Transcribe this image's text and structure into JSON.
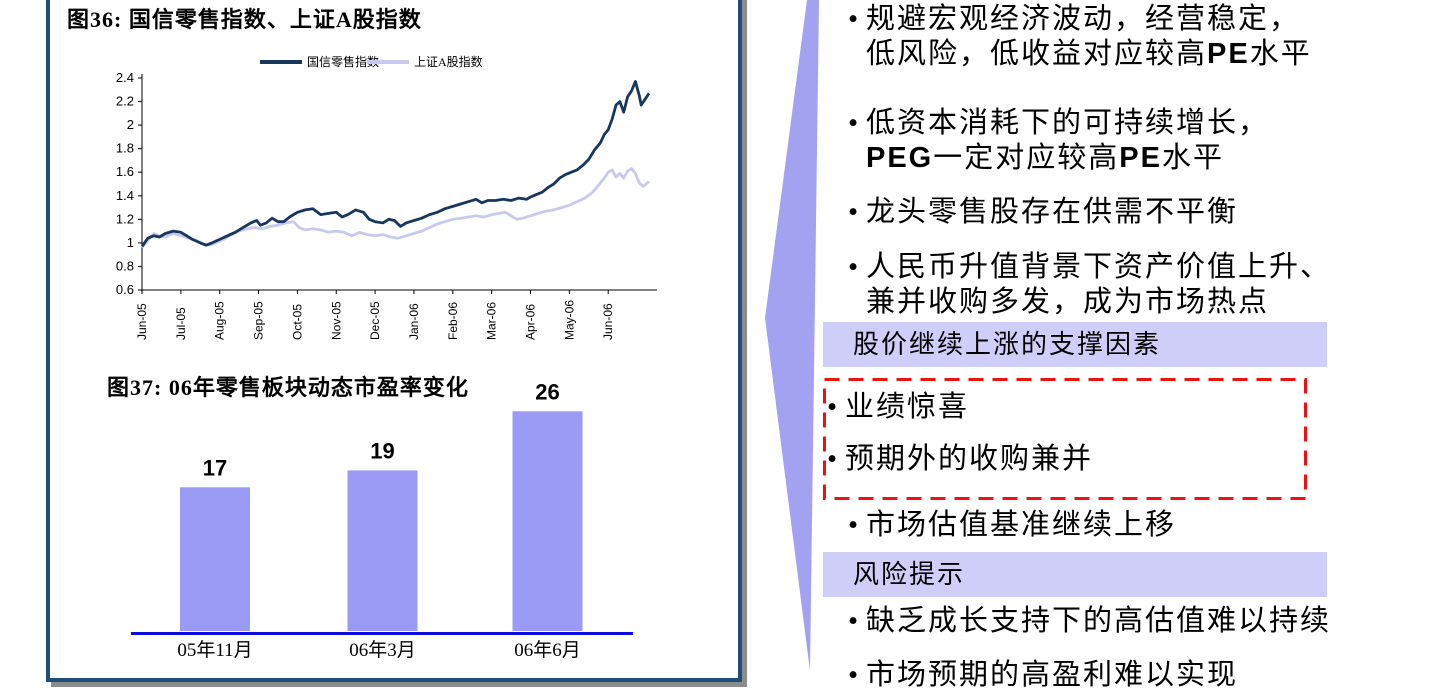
{
  "panel": {
    "fig36_title": "图36:  国信零售指数、上证A股指数",
    "fig37_title": "图37:  06年零售板块动态市盈率变化"
  },
  "chart_data": [
    {
      "type": "line",
      "title": "图36: 国信零售指数、上证A股指数",
      "x_unit": "months (0 = Jun-05)",
      "x_tick_labels": [
        "Jun-05",
        "Jul-05",
        "Aug-05",
        "Sep-05",
        "Oct-05",
        "Nov-05",
        "Dec-05",
        "Jan-06",
        "Feb-06",
        "Mar-06",
        "Apr-06",
        "May-06",
        "Jun-06"
      ],
      "y_tick_labels": [
        "2.4",
        "2.2",
        "2",
        "1.8",
        "1.6",
        "1.4",
        "1.2",
        "1",
        "0.8",
        "0.6"
      ],
      "ylim": [
        0.6,
        2.4
      ],
      "grid": false,
      "legend_position": "top",
      "series": [
        {
          "name": "国信零售指数",
          "color": "#17375E",
          "points": [
            [
              0,
              0.97
            ],
            [
              0.15,
              1.04
            ],
            [
              0.3,
              1.06
            ],
            [
              0.45,
              1.05
            ],
            [
              0.6,
              1.08
            ],
            [
              0.8,
              1.1
            ],
            [
              1.0,
              1.09
            ],
            [
              1.15,
              1.06
            ],
            [
              1.3,
              1.03
            ],
            [
              1.5,
              1.0
            ],
            [
              1.65,
              0.98
            ],
            [
              1.8,
              1.0
            ],
            [
              2.0,
              1.03
            ],
            [
              2.2,
              1.06
            ],
            [
              2.4,
              1.09
            ],
            [
              2.6,
              1.13
            ],
            [
              2.8,
              1.17
            ],
            [
              2.95,
              1.19
            ],
            [
              3.05,
              1.15
            ],
            [
              3.2,
              1.17
            ],
            [
              3.35,
              1.21
            ],
            [
              3.5,
              1.18
            ],
            [
              3.65,
              1.18
            ],
            [
              3.8,
              1.22
            ],
            [
              4.0,
              1.26
            ],
            [
              4.2,
              1.28
            ],
            [
              4.4,
              1.29
            ],
            [
              4.6,
              1.24
            ],
            [
              4.8,
              1.25
            ],
            [
              5.0,
              1.26
            ],
            [
              5.15,
              1.22
            ],
            [
              5.3,
              1.24
            ],
            [
              5.5,
              1.28
            ],
            [
              5.7,
              1.26
            ],
            [
              5.85,
              1.2
            ],
            [
              6.0,
              1.18
            ],
            [
              6.2,
              1.17
            ],
            [
              6.35,
              1.2
            ],
            [
              6.5,
              1.19
            ],
            [
              6.65,
              1.14
            ],
            [
              6.8,
              1.17
            ],
            [
              7.0,
              1.19
            ],
            [
              7.2,
              1.21
            ],
            [
              7.4,
              1.24
            ],
            [
              7.6,
              1.26
            ],
            [
              7.8,
              1.29
            ],
            [
              8.0,
              1.31
            ],
            [
              8.2,
              1.33
            ],
            [
              8.4,
              1.35
            ],
            [
              8.6,
              1.37
            ],
            [
              8.75,
              1.34
            ],
            [
              8.9,
              1.36
            ],
            [
              9.1,
              1.36
            ],
            [
              9.3,
              1.37
            ],
            [
              9.5,
              1.36
            ],
            [
              9.7,
              1.38
            ],
            [
              9.9,
              1.37
            ],
            [
              10.0,
              1.39
            ],
            [
              10.15,
              1.41
            ],
            [
              10.3,
              1.43
            ],
            [
              10.45,
              1.47
            ],
            [
              10.6,
              1.5
            ],
            [
              10.75,
              1.55
            ],
            [
              10.9,
              1.58
            ],
            [
              11.05,
              1.6
            ],
            [
              11.2,
              1.62
            ],
            [
              11.35,
              1.66
            ],
            [
              11.5,
              1.71
            ],
            [
              11.65,
              1.79
            ],
            [
              11.8,
              1.85
            ],
            [
              11.9,
              1.92
            ],
            [
              12.0,
              1.96
            ],
            [
              12.1,
              2.05
            ],
            [
              12.2,
              2.17
            ],
            [
              12.3,
              2.2
            ],
            [
              12.4,
              2.11
            ],
            [
              12.5,
              2.24
            ],
            [
              12.6,
              2.29
            ],
            [
              12.7,
              2.37
            ],
            [
              12.8,
              2.25
            ],
            [
              12.85,
              2.17
            ],
            [
              12.95,
              2.22
            ],
            [
              13.05,
              2.27
            ]
          ]
        },
        {
          "name": "上证A股指数",
          "color": "#C9C9F0",
          "points": [
            [
              0,
              0.96
            ],
            [
              0.15,
              1.02
            ],
            [
              0.3,
              1.08
            ],
            [
              0.45,
              1.06
            ],
            [
              0.6,
              1.05
            ],
            [
              0.8,
              1.08
            ],
            [
              1.0,
              1.06
            ],
            [
              1.2,
              1.04
            ],
            [
              1.4,
              1.02
            ],
            [
              1.6,
              0.99
            ],
            [
              1.75,
              0.98
            ],
            [
              1.9,
              1.0
            ],
            [
              2.1,
              1.03
            ],
            [
              2.3,
              1.07
            ],
            [
              2.5,
              1.1
            ],
            [
              2.7,
              1.12
            ],
            [
              2.9,
              1.13
            ],
            [
              3.1,
              1.12
            ],
            [
              3.3,
              1.14
            ],
            [
              3.5,
              1.15
            ],
            [
              3.7,
              1.17
            ],
            [
              3.9,
              1.18
            ],
            [
              4.05,
              1.13
            ],
            [
              4.2,
              1.11
            ],
            [
              4.4,
              1.12
            ],
            [
              4.6,
              1.11
            ],
            [
              4.8,
              1.09
            ],
            [
              5.0,
              1.1
            ],
            [
              5.2,
              1.09
            ],
            [
              5.4,
              1.06
            ],
            [
              5.6,
              1.09
            ],
            [
              5.8,
              1.07
            ],
            [
              6.0,
              1.06
            ],
            [
              6.2,
              1.07
            ],
            [
              6.4,
              1.05
            ],
            [
              6.6,
              1.04
            ],
            [
              6.8,
              1.06
            ],
            [
              7.0,
              1.08
            ],
            [
              7.2,
              1.1
            ],
            [
              7.4,
              1.13
            ],
            [
              7.6,
              1.16
            ],
            [
              7.8,
              1.18
            ],
            [
              8.0,
              1.2
            ],
            [
              8.2,
              1.21
            ],
            [
              8.4,
              1.22
            ],
            [
              8.6,
              1.23
            ],
            [
              8.8,
              1.22
            ],
            [
              9.0,
              1.24
            ],
            [
              9.2,
              1.25
            ],
            [
              9.35,
              1.26
            ],
            [
              9.5,
              1.23
            ],
            [
              9.65,
              1.2
            ],
            [
              9.8,
              1.21
            ],
            [
              10.0,
              1.23
            ],
            [
              10.2,
              1.25
            ],
            [
              10.4,
              1.27
            ],
            [
              10.6,
              1.28
            ],
            [
              10.8,
              1.3
            ],
            [
              11.0,
              1.32
            ],
            [
              11.2,
              1.35
            ],
            [
              11.4,
              1.38
            ],
            [
              11.6,
              1.43
            ],
            [
              11.75,
              1.49
            ],
            [
              11.9,
              1.55
            ],
            [
              12.0,
              1.6
            ],
            [
              12.1,
              1.62
            ],
            [
              12.2,
              1.56
            ],
            [
              12.3,
              1.59
            ],
            [
              12.4,
              1.55
            ],
            [
              12.5,
              1.61
            ],
            [
              12.6,
              1.63
            ],
            [
              12.7,
              1.59
            ],
            [
              12.8,
              1.51
            ],
            [
              12.9,
              1.48
            ],
            [
              13.05,
              1.52
            ]
          ]
        }
      ]
    },
    {
      "type": "bar",
      "title": "图37: 06年零售板块动态市盈率变化",
      "categories": [
        "05年11月",
        "06年3月",
        "06年6月"
      ],
      "values": [
        17,
        19,
        26
      ],
      "bar_color": "#9B9BF6",
      "axis_color": "#0B0BE0",
      "ylim": [
        0,
        29.7
      ],
      "grid": false
    }
  ],
  "right": {
    "bullet_char": "•",
    "bullets_top": [
      {
        "lines": [
          "规避宏观经济波动，经营稳定，",
          "低风险，低收益对应较高PE水平"
        ]
      },
      {
        "lines": [
          "低资本消耗下的可持续增长，",
          "PEG一定对应较高PE水平"
        ]
      },
      {
        "lines": [
          "龙头零售股存在供需不平衡"
        ]
      },
      {
        "lines": [
          "人民币升值背景下资产价值上升、",
          "兼并收购多发，成为市场热点"
        ]
      }
    ],
    "support_header": "股价继续上涨的支撑因素",
    "highlight_bullets": [
      {
        "lines": [
          "业绩惊喜"
        ]
      },
      {
        "lines": [
          "预期外的收购兼并"
        ]
      }
    ],
    "bullet_mid": {
      "lines": [
        "市场估值基准继续上移"
      ]
    },
    "risk_header": "风险提示",
    "risk_bullets": [
      {
        "lines": [
          "缺乏成长支持下的高估值难以持续"
        ]
      },
      {
        "lines": [
          "市场预期的高盈利难以实现"
        ]
      }
    ]
  },
  "colors": {
    "panel_border": "#1F4E79",
    "panel_shadow": "#8C8C8C",
    "arrow_fill": "#A2A2F1",
    "banner_bg": "#CECEF8",
    "dashed_red": "#EE1111",
    "axis_black": "#000000"
  }
}
